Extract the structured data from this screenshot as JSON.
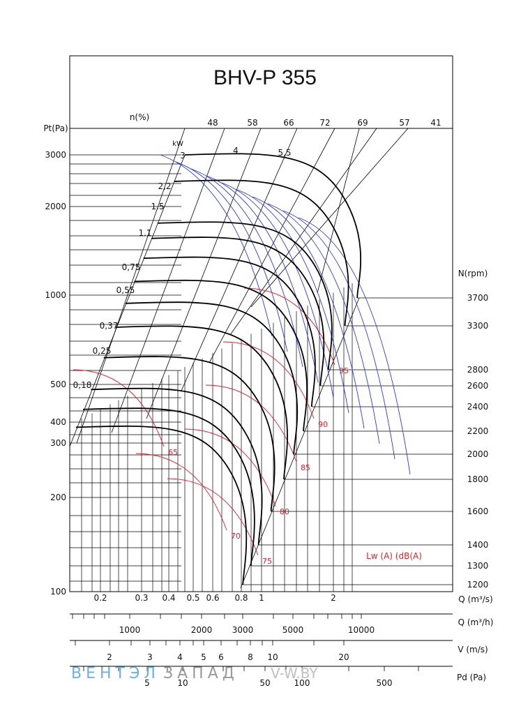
{
  "chart_data": {
    "type": "line",
    "title": "BHV-P 355",
    "ylabel": "Pt(Pa)",
    "y_scale": "log",
    "y_ticks": [
      "100",
      "200",
      "300",
      "400",
      "500",
      "1000",
      "2000",
      "3000"
    ],
    "efficiency_label": "n(%)",
    "efficiency_values": [
      "48",
      "58",
      "66",
      "72",
      "69",
      "57",
      "41"
    ],
    "power_unit": "kW",
    "power_labels": [
      "3",
      "4",
      "5,5",
      "2,2",
      "1.5",
      "1.1",
      "0,75",
      "0,55",
      "0,37",
      "0,25",
      "0,18"
    ],
    "rpm_label": "N(rpm)",
    "rpm_values": [
      "3700",
      "3300",
      "2800",
      "2600",
      "2400",
      "2200",
      "2000",
      "1800",
      "1600",
      "1400",
      "1300",
      "1200"
    ],
    "noise_label": "Lw (A) (dB(A)",
    "noise_values": [
      "65",
      "70",
      "75",
      "80",
      "85",
      "90",
      "95"
    ],
    "flow_axes": [
      {
        "label": "Q (m³/s)",
        "ticks": [
          "0.2",
          "0.3",
          "0.4",
          "0.5",
          "0.6",
          "0.8",
          "1",
          "2"
        ]
      },
      {
        "label": "Q (m³/h)",
        "ticks": [
          "1000",
          "2000",
          "3000",
          "5000",
          "10000"
        ]
      },
      {
        "label": "V (m/s)",
        "ticks": [
          "2",
          "3",
          "4",
          "5",
          "6",
          "8",
          "10",
          "20"
        ]
      },
      {
        "label": "Pd (Pa)",
        "ticks": [
          "5",
          "10",
          "50",
          "100",
          "500"
        ]
      }
    ],
    "fan_curves": [
      {
        "rpm": 3700,
        "q_max_m3s": 2.6
      },
      {
        "rpm": 3300,
        "q_max_m3s": 2.3
      },
      {
        "rpm": 2800,
        "q_max_m3s": 1.95
      },
      {
        "rpm": 2600,
        "q_max_m3s": 1.8
      },
      {
        "rpm": 2400,
        "q_max_m3s": 1.65
      },
      {
        "rpm": 2200,
        "q_max_m3s": 1.52
      },
      {
        "rpm": 2000,
        "q_max_m3s": 1.38
      },
      {
        "rpm": 1800,
        "q_max_m3s": 1.25
      },
      {
        "rpm": 1600,
        "q_max_m3s": 1.1
      },
      {
        "rpm": 1400,
        "q_max_m3s": 0.97
      },
      {
        "rpm": 1300,
        "q_max_m3s": 0.9
      },
      {
        "rpm": 1200,
        "q_max_m3s": 0.83
      }
    ]
  },
  "watermark": {
    "part1": "ВЕНТЭЛ",
    "part2": "ЗАПАД",
    "site": "V-W.BY"
  }
}
